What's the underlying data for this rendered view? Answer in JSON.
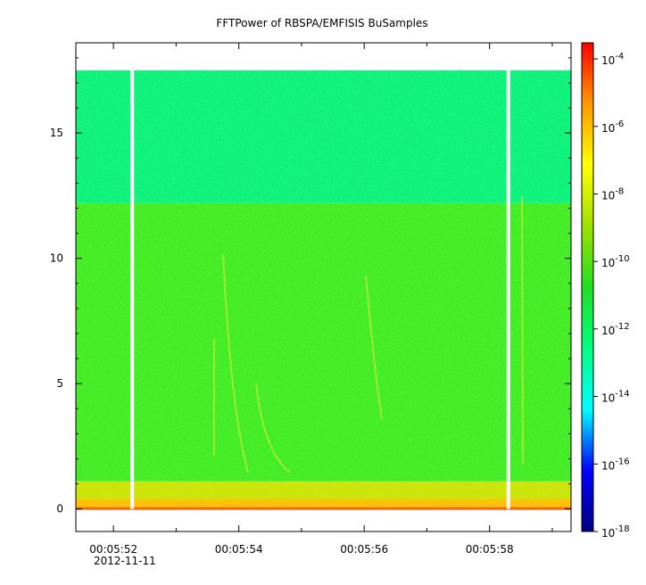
{
  "chart_data": {
    "type": "heatmap",
    "title": "FFTPower of RBSPA/EMFISIS  BuSamples",
    "xlabel": "",
    "ylabel": "",
    "x_range": [
      "2012-11-11T00:05:51.4",
      "2012-11-11T00:05:59.3"
    ],
    "x_ticks": [
      "00:05:52",
      "00:05:54",
      "00:05:56",
      "00:05:58"
    ],
    "x_date_label": "2012-11-11",
    "ylim": [
      -0.9,
      18.6
    ],
    "y_ticks": [
      0,
      5,
      10,
      15
    ],
    "data_extent": {
      "y_max": 17.5,
      "y_min": 0
    },
    "gaps": [
      "00:05:52.3",
      "00:05:58.3"
    ],
    "bands": [
      {
        "y_from": 12.2,
        "y_to": 17.5,
        "level": "1e-12",
        "color": "#00f27a"
      },
      {
        "y_from": 1.1,
        "y_to": 12.2,
        "level": "1e-10",
        "color": "#38ec1e"
      },
      {
        "y_from": 0.4,
        "y_to": 1.1,
        "level": "1e-9",
        "color": "#c8e400"
      },
      {
        "y_from": 0,
        "y_to": 0.4,
        "level": "1e-7",
        "color": "#ffbe00"
      }
    ],
    "colorbar": {
      "scale": "log",
      "range": [
        "1e-18",
        "3e-4"
      ],
      "tick_bases": [
        "10",
        "10",
        "10",
        "10",
        "10",
        "10",
        "10",
        "10"
      ],
      "tick_exponents": [
        "-4",
        "-6",
        "-8",
        "-10",
        "-12",
        "-14",
        "-16",
        "-18"
      ],
      "tick_values": [
        -4,
        -6,
        -8,
        -10,
        -12,
        -14,
        -16,
        -18
      ],
      "colors": [
        "#00007f",
        "#0000ff",
        "#00ffff",
        "#00ff80",
        "#20e020",
        "#a0e000",
        "#ffff00",
        "#ff9900",
        "#ff0000"
      ]
    }
  }
}
